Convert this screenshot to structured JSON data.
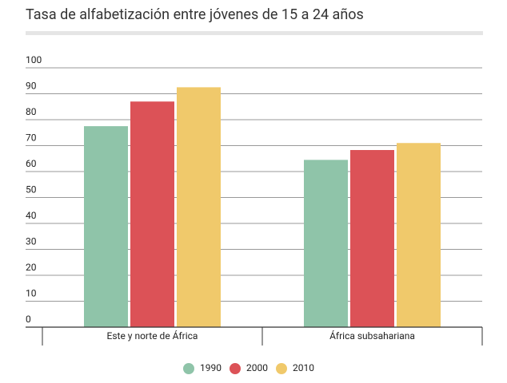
{
  "chart_data": {
    "type": "bar",
    "title": "Tasa de alfabetización entre jóvenes de 15 a 24 años",
    "categories": [
      "Este y norte de África",
      "África subsahariana"
    ],
    "series": [
      {
        "name": "1990",
        "color": "#8fc4a9",
        "values": [
          77.5,
          64.5
        ]
      },
      {
        "name": "2000",
        "color": "#dc5257",
        "values": [
          87,
          68.3
        ]
      },
      {
        "name": "2010",
        "color": "#f0c96b",
        "values": [
          92.5,
          71
        ]
      }
    ],
    "ylim": [
      0,
      100
    ],
    "yticks": [
      0,
      10,
      20,
      30,
      40,
      50,
      60,
      70,
      80,
      90,
      100
    ],
    "grid": true,
    "legend": "bottom"
  }
}
